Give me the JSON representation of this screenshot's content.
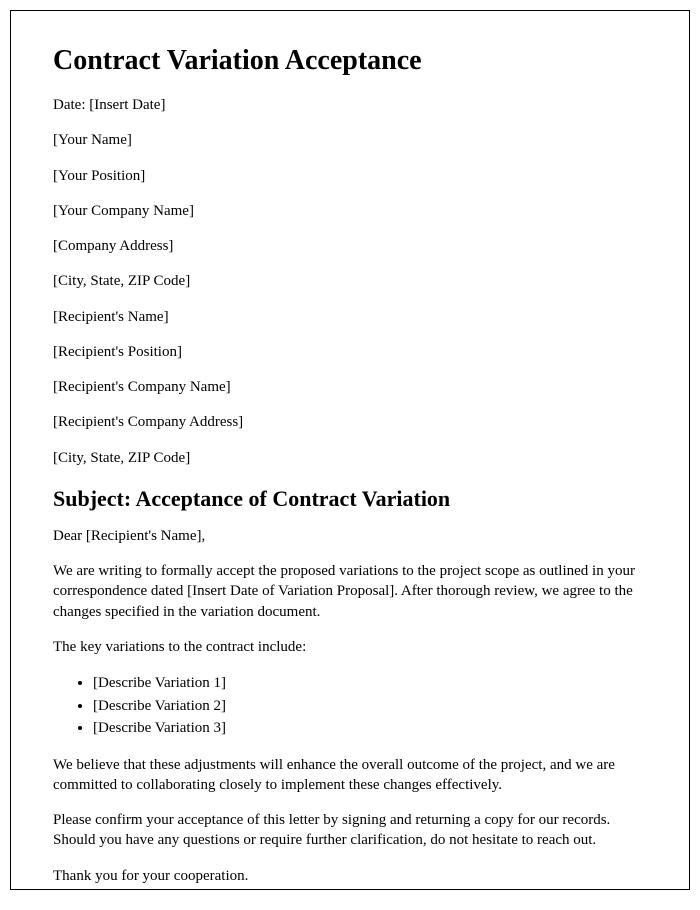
{
  "title": "Contract Variation Acceptance",
  "header_fields": [
    "Date: [Insert Date]",
    "[Your Name]",
    "[Your Position]",
    "[Your Company Name]",
    "[Company Address]",
    "[City, State, ZIP Code]",
    "[Recipient's Name]",
    "[Recipient's Position]",
    "[Recipient's Company Name]",
    "[Recipient's Company Address]",
    "[City, State, ZIP Code]"
  ],
  "subject": "Subject: Acceptance of Contract Variation",
  "salutation": "Dear [Recipient's Name],",
  "body_p1": "We are writing to formally accept the proposed variations to the project scope as outlined in your correspondence dated [Insert Date of Variation Proposal]. After thorough review, we agree to the changes specified in the variation document.",
  "body_p2": "The key variations to the contract include:",
  "variations": [
    "[Describe Variation 1]",
    "[Describe Variation 2]",
    "[Describe Variation 3]"
  ],
  "body_p3": "We believe that these adjustments will enhance the overall outcome of the project, and we are committed to collaborating closely to implement these changes effectively.",
  "body_p4": "Please confirm your acceptance of this letter by signing and returning a copy for our records. Should you have any questions or require further clarification, do not hesitate to reach out.",
  "body_p5": "Thank you for your cooperation."
}
